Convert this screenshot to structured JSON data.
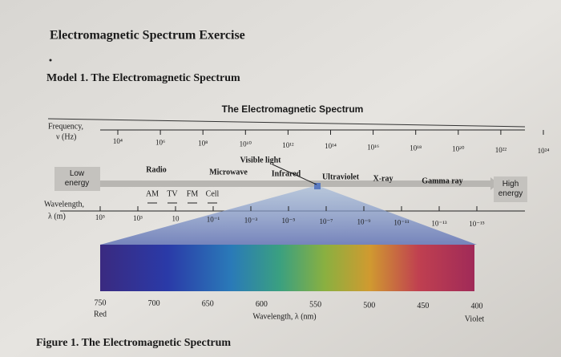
{
  "header": {
    "title": "Electromagnetic Spectrum Exercise",
    "model": "Model 1. The Electromagnetic Spectrum"
  },
  "diagram": {
    "title": "The Electromagnetic Spectrum",
    "frequency_label": [
      "Frequency,",
      "ν (Hz)"
    ],
    "frequencies": [
      "10⁴",
      "10⁶",
      "10⁸",
      "10¹⁰",
      "10¹²",
      "10¹⁴",
      "10¹⁶",
      "10¹⁸",
      "10²⁰",
      "10²²",
      "10²⁴"
    ],
    "low_energy": "Low energy",
    "high_energy": "High energy",
    "bands": [
      "Radio",
      "Microwave",
      "Infrared",
      "Visible light",
      "Ultraviolet",
      "X-ray",
      "Gamma ray"
    ],
    "radio_bands": [
      "AM",
      "TV",
      "FM",
      "Cell"
    ],
    "wavelength_label": [
      "Wavelength,",
      "λ (m)"
    ],
    "wavelengths": [
      "10⁵",
      "10³",
      "10",
      "10⁻¹",
      "10⁻³",
      "10⁻⁵",
      "10⁻⁷",
      "10⁻⁹",
      "10⁻¹¹",
      "10⁻¹³",
      "10⁻¹⁵"
    ],
    "visible_scale": [
      "750",
      "700",
      "650",
      "600",
      "550",
      "500",
      "450",
      "400"
    ],
    "red": "Red",
    "violet": "Violet",
    "visible_axis_label": "Wavelength, λ (nm)"
  },
  "caption": "Figure 1. The Electromagnetic Spectrum"
}
